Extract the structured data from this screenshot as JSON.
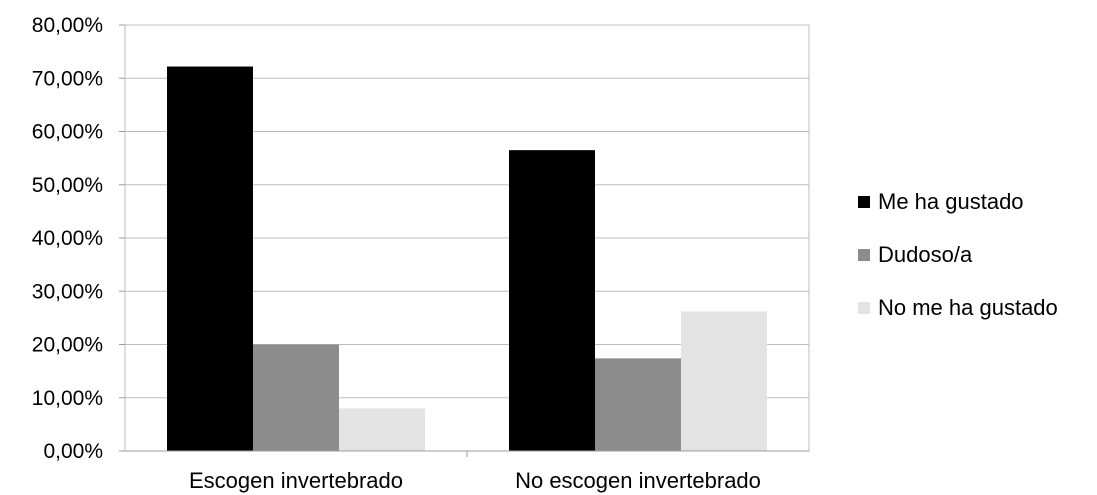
{
  "chart_data": {
    "type": "bar",
    "title": "",
    "xlabel": "",
    "ylabel": "",
    "categories": [
      "Escogen invertebrado",
      "No escogen invertebrado"
    ],
    "series": [
      {
        "name": "Me ha gustado",
        "values": [
          72.2,
          56.5
        ],
        "color": "#000000"
      },
      {
        "name": "Dudoso/a",
        "values": [
          20.0,
          17.4
        ],
        "color": "#8c8c8c"
      },
      {
        "name": "No me ha gustado",
        "values": [
          8.0,
          26.2
        ],
        "color": "#e3e3e3"
      }
    ],
    "ylim": [
      0,
      80
    ],
    "y_ticks": [
      "0,00%",
      "10,00%",
      "20,00%",
      "30,00%",
      "40,00%",
      "50,00%",
      "60,00%",
      "70,00%",
      "80,00%"
    ],
    "grid": true,
    "legend_position": "right"
  }
}
